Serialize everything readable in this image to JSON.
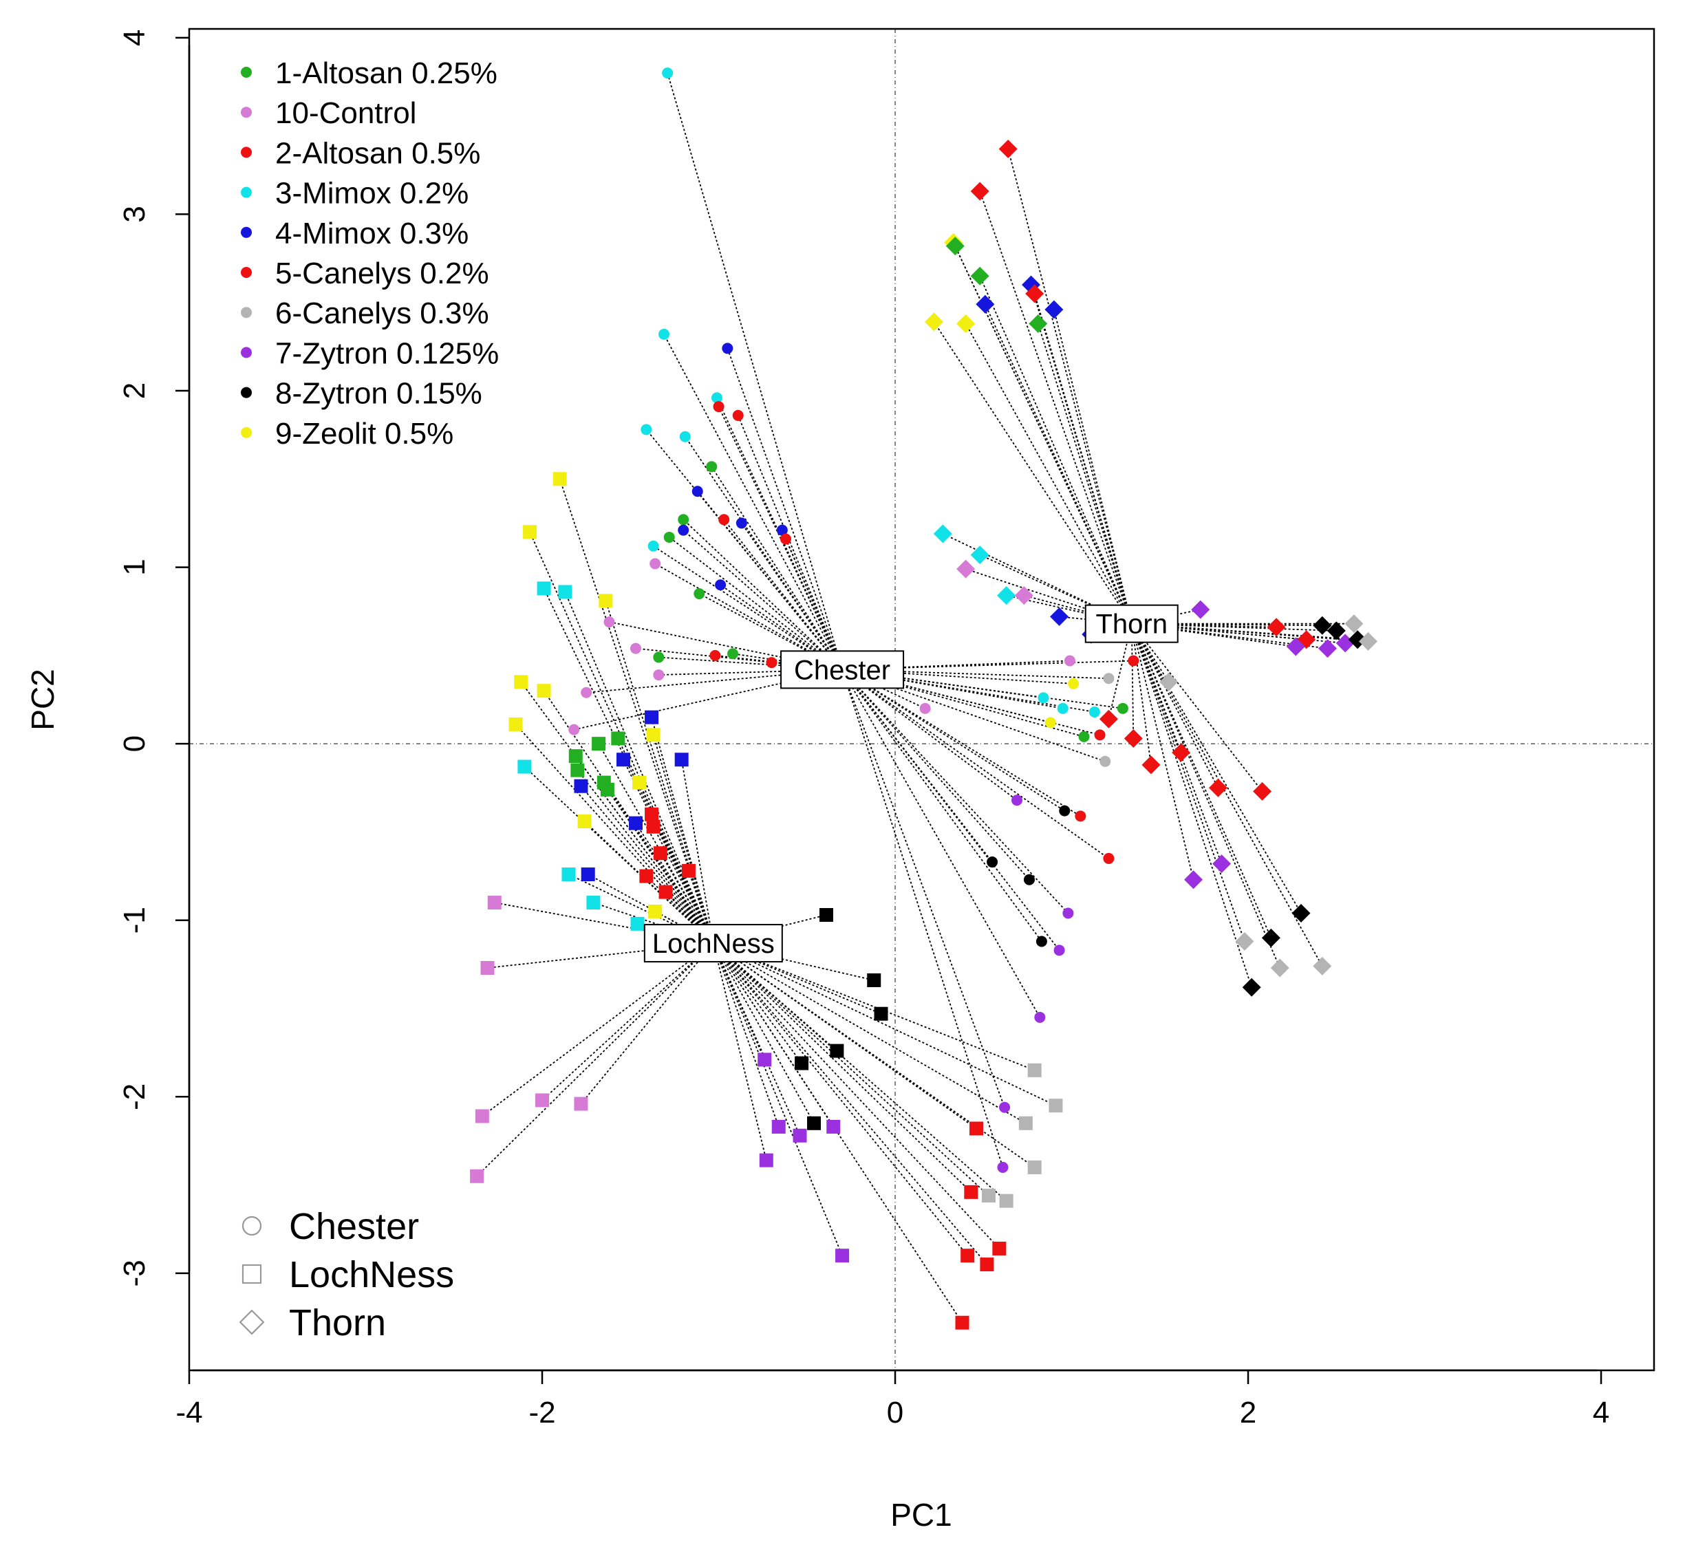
{
  "chart_data": {
    "type": "scatter",
    "xlabel": "PC1",
    "ylabel": "PC2",
    "xlim": [
      -4.0,
      4.3
    ],
    "ylim": [
      -3.55,
      4.05
    ],
    "xticks": [
      -4,
      -2,
      0,
      2,
      4
    ],
    "yticks": [
      -3,
      -2,
      -1,
      0,
      1,
      2,
      3,
      4
    ],
    "reference_lines": {
      "x": 0,
      "y": 0
    },
    "legend_treatments": {
      "placement": "top-left",
      "entries": [
        {
          "label": "1-Altosan 0.25%",
          "color": "#22b022"
        },
        {
          "label": "10-Control",
          "color": "#d67ad6"
        },
        {
          "label": "2-Altosan 0.5%",
          "color": "#ee1111"
        },
        {
          "label": "3-Mimox 0.2%",
          "color": "#11e2e8"
        },
        {
          "label": "4-Mimox 0.3%",
          "color": "#1515dd"
        },
        {
          "label": "5-Canelys 0.2%",
          "color": "#ee1111"
        },
        {
          "label": "6-Canelys 0.3%",
          "color": "#b4b4b4"
        },
        {
          "label": "7-Zytron 0.125%",
          "color": "#9a30e0"
        },
        {
          "label": "8-Zytron 0.15%",
          "color": "#000000"
        },
        {
          "label": "9-Zeolit 0.5%",
          "color": "#f2ee10"
        }
      ]
    },
    "legend_sites": {
      "placement": "bottom-left",
      "entries": [
        {
          "label": "Chester",
          "shape": "circle"
        },
        {
          "label": "LochNess",
          "shape": "square"
        },
        {
          "label": "Thorn",
          "shape": "diamond"
        }
      ]
    },
    "centroids": [
      {
        "label": "Chester",
        "x": -0.3,
        "y": 0.42
      },
      {
        "label": "LochNess",
        "x": -1.03,
        "y": -1.13
      },
      {
        "label": "Thorn",
        "x": 1.34,
        "y": 0.68
      }
    ],
    "series": [
      {
        "name": "Chester",
        "shape": "circle",
        "points": [
          {
            "x": -1.29,
            "y": 3.8,
            "c": "#11e2e8"
          },
          {
            "x": -1.31,
            "y": 2.32,
            "c": "#11e2e8"
          },
          {
            "x": -0.95,
            "y": 2.24,
            "c": "#1515dd"
          },
          {
            "x": -1.01,
            "y": 1.96,
            "c": "#11e2e8"
          },
          {
            "x": -1.0,
            "y": 1.91,
            "c": "#ee1111"
          },
          {
            "x": -0.89,
            "y": 1.86,
            "c": "#ee1111"
          },
          {
            "x": -1.41,
            "y": 1.78,
            "c": "#11e2e8"
          },
          {
            "x": -1.19,
            "y": 1.74,
            "c": "#11e2e8"
          },
          {
            "x": -1.04,
            "y": 1.57,
            "c": "#22b022"
          },
          {
            "x": -1.12,
            "y": 1.43,
            "c": "#1515dd"
          },
          {
            "x": -1.2,
            "y": 1.27,
            "c": "#22b022"
          },
          {
            "x": -0.97,
            "y": 1.27,
            "c": "#ee1111"
          },
          {
            "x": -0.87,
            "y": 1.25,
            "c": "#1515dd"
          },
          {
            "x": -1.2,
            "y": 1.21,
            "c": "#1515dd"
          },
          {
            "x": -1.28,
            "y": 1.17,
            "c": "#22b022"
          },
          {
            "x": -0.64,
            "y": 1.21,
            "c": "#1515dd"
          },
          {
            "x": -0.62,
            "y": 1.16,
            "c": "#ee1111"
          },
          {
            "x": -1.37,
            "y": 1.12,
            "c": "#11e2e8"
          },
          {
            "x": -1.36,
            "y": 1.02,
            "c": "#d67ad6"
          },
          {
            "x": -0.99,
            "y": 0.9,
            "c": "#1515dd"
          },
          {
            "x": -1.11,
            "y": 0.85,
            "c": "#22b022"
          },
          {
            "x": -1.62,
            "y": 0.69,
            "c": "#d67ad6"
          },
          {
            "x": -1.47,
            "y": 0.54,
            "c": "#d67ad6"
          },
          {
            "x": -1.34,
            "y": 0.49,
            "c": "#22b022"
          },
          {
            "x": -1.02,
            "y": 0.5,
            "c": "#ee1111"
          },
          {
            "x": -0.92,
            "y": 0.51,
            "c": "#22b022"
          },
          {
            "x": -0.7,
            "y": 0.46,
            "c": "#ee1111"
          },
          {
            "x": -1.34,
            "y": 0.39,
            "c": "#d67ad6"
          },
          {
            "x": -1.75,
            "y": 0.29,
            "c": "#d67ad6"
          },
          {
            "x": -1.82,
            "y": 0.08,
            "c": "#d67ad6"
          },
          {
            "x": 0.84,
            "y": 0.26,
            "c": "#11e2e8"
          },
          {
            "x": 0.95,
            "y": 0.2,
            "c": "#11e2e8"
          },
          {
            "x": 1.13,
            "y": 0.18,
            "c": "#11e2e8"
          },
          {
            "x": 0.88,
            "y": 0.12,
            "c": "#f2ee10"
          },
          {
            "x": 1.29,
            "y": 0.2,
            "c": "#22b022"
          },
          {
            "x": 1.07,
            "y": 0.04,
            "c": "#22b022"
          },
          {
            "x": 1.16,
            "y": 0.05,
            "c": "#ee1111"
          },
          {
            "x": 1.21,
            "y": 0.37,
            "c": "#b4b4b4"
          },
          {
            "x": 1.35,
            "y": 0.47,
            "c": "#ee1111"
          },
          {
            "x": 0.69,
            "y": -0.32,
            "c": "#9a30e0"
          },
          {
            "x": 0.96,
            "y": -0.38,
            "c": "#000000"
          },
          {
            "x": 1.05,
            "y": -0.41,
            "c": "#ee1111"
          },
          {
            "x": 1.19,
            "y": -0.1,
            "c": "#b4b4b4"
          },
          {
            "x": 0.55,
            "y": -0.67,
            "c": "#000000"
          },
          {
            "x": 0.76,
            "y": -0.77,
            "c": "#000000"
          },
          {
            "x": 1.21,
            "y": -0.65,
            "c": "#ee1111"
          },
          {
            "x": 0.98,
            "y": -0.96,
            "c": "#9a30e0"
          },
          {
            "x": 0.83,
            "y": -1.12,
            "c": "#000000"
          },
          {
            "x": 0.93,
            "y": -1.17,
            "c": "#9a30e0"
          },
          {
            "x": 0.82,
            "y": -1.55,
            "c": "#9a30e0"
          },
          {
            "x": 0.62,
            "y": -2.06,
            "c": "#9a30e0"
          },
          {
            "x": 0.61,
            "y": -2.4,
            "c": "#9a30e0"
          },
          {
            "x": 0.17,
            "y": 0.2,
            "c": "#d67ad6"
          },
          {
            "x": 0.99,
            "y": 0.47,
            "c": "#d67ad6"
          },
          {
            "x": 1.01,
            "y": 0.34,
            "c": "#f2ee10"
          }
        ]
      },
      {
        "name": "LochNess",
        "shape": "square",
        "points": [
          {
            "x": -1.9,
            "y": 1.5,
            "c": "#f2ee10"
          },
          {
            "x": -2.07,
            "y": 1.2,
            "c": "#f2ee10"
          },
          {
            "x": -1.99,
            "y": 0.88,
            "c": "#11e2e8"
          },
          {
            "x": -1.87,
            "y": 0.86,
            "c": "#11e2e8"
          },
          {
            "x": -1.64,
            "y": 0.81,
            "c": "#f2ee10"
          },
          {
            "x": -2.12,
            "y": 0.35,
            "c": "#f2ee10"
          },
          {
            "x": -1.99,
            "y": 0.3,
            "c": "#f2ee10"
          },
          {
            "x": -2.15,
            "y": 0.11,
            "c": "#f2ee10"
          },
          {
            "x": -1.38,
            "y": 0.15,
            "c": "#1515dd"
          },
          {
            "x": -1.57,
            "y": 0.03,
            "c": "#22b022"
          },
          {
            "x": -1.68,
            "y": 0.0,
            "c": "#22b022"
          },
          {
            "x": -1.81,
            "y": -0.07,
            "c": "#22b022"
          },
          {
            "x": -1.54,
            "y": -0.09,
            "c": "#1515dd"
          },
          {
            "x": -1.8,
            "y": -0.15,
            "c": "#22b022"
          },
          {
            "x": -1.37,
            "y": 0.05,
            "c": "#f2ee10"
          },
          {
            "x": -2.1,
            "y": -0.13,
            "c": "#11e2e8"
          },
          {
            "x": -1.21,
            "y": -0.09,
            "c": "#1515dd"
          },
          {
            "x": -1.65,
            "y": -0.22,
            "c": "#22b022"
          },
          {
            "x": -1.63,
            "y": -0.26,
            "c": "#22b022"
          },
          {
            "x": -1.78,
            "y": -0.24,
            "c": "#1515dd"
          },
          {
            "x": -1.45,
            "y": -0.22,
            "c": "#f2ee10"
          },
          {
            "x": -1.38,
            "y": -0.4,
            "c": "#ee1111"
          },
          {
            "x": -1.47,
            "y": -0.45,
            "c": "#1515dd"
          },
          {
            "x": -1.37,
            "y": -0.47,
            "c": "#ee1111"
          },
          {
            "x": -1.76,
            "y": -0.44,
            "c": "#f2ee10"
          },
          {
            "x": -1.33,
            "y": -0.62,
            "c": "#ee1111"
          },
          {
            "x": -1.17,
            "y": -0.72,
            "c": "#ee1111"
          },
          {
            "x": -1.41,
            "y": -0.75,
            "c": "#ee1111"
          },
          {
            "x": -1.85,
            "y": -0.74,
            "c": "#11e2e8"
          },
          {
            "x": -1.74,
            "y": -0.74,
            "c": "#1515dd"
          },
          {
            "x": -1.3,
            "y": -0.84,
            "c": "#ee1111"
          },
          {
            "x": -1.36,
            "y": -0.95,
            "c": "#f2ee10"
          },
          {
            "x": -1.71,
            "y": -0.9,
            "c": "#11e2e8"
          },
          {
            "x": -1.46,
            "y": -1.02,
            "c": "#11e2e8"
          },
          {
            "x": -2.27,
            "y": -0.9,
            "c": "#d67ad6"
          },
          {
            "x": -2.31,
            "y": -1.27,
            "c": "#d67ad6"
          },
          {
            "x": -2.34,
            "y": -2.11,
            "c": "#d67ad6"
          },
          {
            "x": -2.0,
            "y": -2.02,
            "c": "#d67ad6"
          },
          {
            "x": -1.78,
            "y": -2.04,
            "c": "#d67ad6"
          },
          {
            "x": -2.37,
            "y": -2.45,
            "c": "#d67ad6"
          },
          {
            "x": -0.39,
            "y": -0.97,
            "c": "#000000"
          },
          {
            "x": -0.12,
            "y": -1.34,
            "c": "#000000"
          },
          {
            "x": -0.08,
            "y": -1.53,
            "c": "#000000"
          },
          {
            "x": -0.33,
            "y": -1.74,
            "c": "#000000"
          },
          {
            "x": -0.53,
            "y": -1.81,
            "c": "#000000"
          },
          {
            "x": -0.46,
            "y": -2.15,
            "c": "#000000"
          },
          {
            "x": -0.74,
            "y": -1.79,
            "c": "#9a30e0"
          },
          {
            "x": -0.66,
            "y": -2.17,
            "c": "#9a30e0"
          },
          {
            "x": -0.54,
            "y": -2.22,
            "c": "#9a30e0"
          },
          {
            "x": -0.35,
            "y": -2.17,
            "c": "#9a30e0"
          },
          {
            "x": -0.73,
            "y": -2.36,
            "c": "#9a30e0"
          },
          {
            "x": -0.3,
            "y": -2.9,
            "c": "#9a30e0"
          },
          {
            "x": 0.79,
            "y": -1.85,
            "c": "#b4b4b4"
          },
          {
            "x": 0.91,
            "y": -2.05,
            "c": "#b4b4b4"
          },
          {
            "x": 0.74,
            "y": -2.15,
            "c": "#b4b4b4"
          },
          {
            "x": 0.79,
            "y": -2.4,
            "c": "#b4b4b4"
          },
          {
            "x": 0.53,
            "y": -2.56,
            "c": "#b4b4b4"
          },
          {
            "x": 0.63,
            "y": -2.59,
            "c": "#b4b4b4"
          },
          {
            "x": 0.46,
            "y": -2.18,
            "c": "#ee1111"
          },
          {
            "x": 0.43,
            "y": -2.54,
            "c": "#ee1111"
          },
          {
            "x": 0.41,
            "y": -2.9,
            "c": "#ee1111"
          },
          {
            "x": 0.52,
            "y": -2.95,
            "c": "#ee1111"
          },
          {
            "x": 0.59,
            "y": -2.86,
            "c": "#ee1111"
          },
          {
            "x": 0.38,
            "y": -3.28,
            "c": "#ee1111"
          }
        ]
      },
      {
        "name": "Thorn",
        "shape": "diamond",
        "points": [
          {
            "x": 0.64,
            "y": 3.37,
            "c": "#ee1111"
          },
          {
            "x": 0.48,
            "y": 3.13,
            "c": "#ee1111"
          },
          {
            "x": 0.33,
            "y": 2.84,
            "c": "#f2ee10"
          },
          {
            "x": 0.34,
            "y": 2.82,
            "c": "#22b022"
          },
          {
            "x": 0.48,
            "y": 2.65,
            "c": "#22b022"
          },
          {
            "x": 0.77,
            "y": 2.6,
            "c": "#1515dd"
          },
          {
            "x": 0.79,
            "y": 2.55,
            "c": "#ee1111"
          },
          {
            "x": 0.51,
            "y": 2.49,
            "c": "#1515dd"
          },
          {
            "x": 0.9,
            "y": 2.46,
            "c": "#1515dd"
          },
          {
            "x": 0.81,
            "y": 2.38,
            "c": "#22b022"
          },
          {
            "x": 0.22,
            "y": 2.39,
            "c": "#f2ee10"
          },
          {
            "x": 0.4,
            "y": 2.38,
            "c": "#f2ee10"
          },
          {
            "x": 0.27,
            "y": 1.19,
            "c": "#11e2e8"
          },
          {
            "x": 0.48,
            "y": 1.07,
            "c": "#11e2e8"
          },
          {
            "x": 0.4,
            "y": 0.99,
            "c": "#d67ad6"
          },
          {
            "x": 0.63,
            "y": 0.84,
            "c": "#11e2e8"
          },
          {
            "x": 0.73,
            "y": 0.84,
            "c": "#d67ad6"
          },
          {
            "x": 0.93,
            "y": 0.72,
            "c": "#1515dd"
          },
          {
            "x": 1.73,
            "y": 0.76,
            "c": "#9a30e0"
          },
          {
            "x": 2.16,
            "y": 0.66,
            "c": "#ee1111"
          },
          {
            "x": 2.42,
            "y": 0.67,
            "c": "#000000"
          },
          {
            "x": 2.6,
            "y": 0.68,
            "c": "#b4b4b4"
          },
          {
            "x": 2.5,
            "y": 0.64,
            "c": "#000000"
          },
          {
            "x": 2.33,
            "y": 0.59,
            "c": "#ee1111"
          },
          {
            "x": 2.27,
            "y": 0.55,
            "c": "#9a30e0"
          },
          {
            "x": 2.45,
            "y": 0.54,
            "c": "#9a30e0"
          },
          {
            "x": 2.55,
            "y": 0.57,
            "c": "#9a30e0"
          },
          {
            "x": 2.62,
            "y": 0.59,
            "c": "#000000"
          },
          {
            "x": 2.68,
            "y": 0.58,
            "c": "#b4b4b4"
          },
          {
            "x": 1.11,
            "y": 0.62,
            "c": "#1515dd"
          },
          {
            "x": 1.55,
            "y": 0.35,
            "c": "#b4b4b4"
          },
          {
            "x": 1.21,
            "y": 0.14,
            "c": "#ee1111"
          },
          {
            "x": 1.35,
            "y": 0.03,
            "c": "#ee1111"
          },
          {
            "x": 1.62,
            "y": -0.05,
            "c": "#ee1111"
          },
          {
            "x": 1.45,
            "y": -0.12,
            "c": "#ee1111"
          },
          {
            "x": 1.83,
            "y": -0.25,
            "c": "#ee1111"
          },
          {
            "x": 2.08,
            "y": -0.27,
            "c": "#ee1111"
          },
          {
            "x": 1.85,
            "y": -0.68,
            "c": "#9a30e0"
          },
          {
            "x": 1.69,
            "y": -0.77,
            "c": "#9a30e0"
          },
          {
            "x": 2.3,
            "y": -0.96,
            "c": "#000000"
          },
          {
            "x": 2.13,
            "y": -1.1,
            "c": "#000000"
          },
          {
            "x": 1.98,
            "y": -1.12,
            "c": "#b4b4b4"
          },
          {
            "x": 2.02,
            "y": -1.38,
            "c": "#000000"
          },
          {
            "x": 2.18,
            "y": -1.27,
            "c": "#b4b4b4"
          },
          {
            "x": 2.42,
            "y": -1.26,
            "c": "#b4b4b4"
          }
        ]
      }
    ]
  }
}
